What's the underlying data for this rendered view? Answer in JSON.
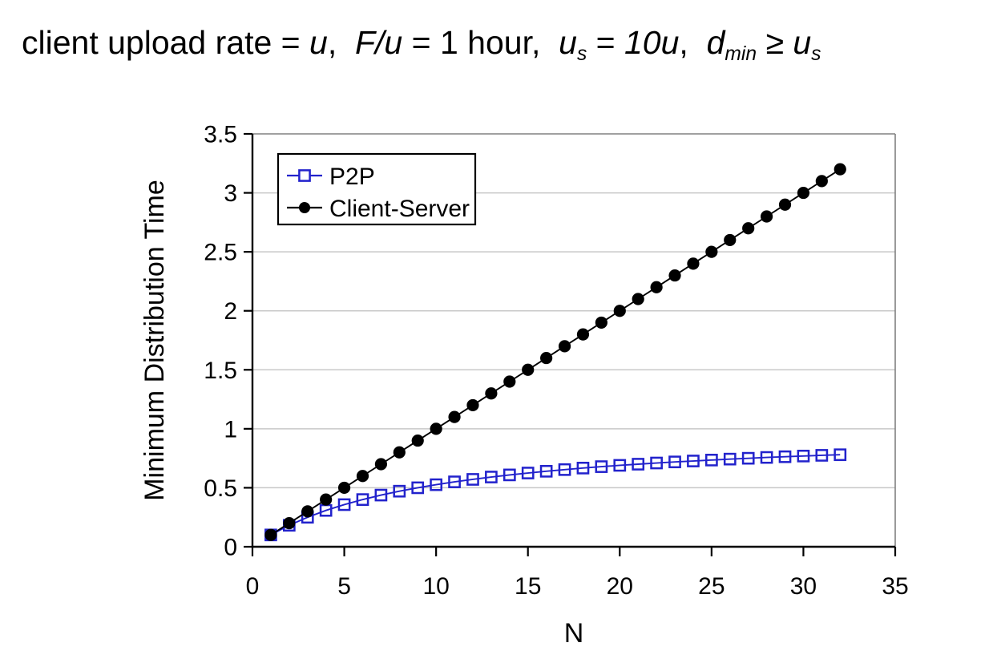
{
  "title": {
    "segments": [
      {
        "text": "client upload rate = "
      },
      {
        "text": "u",
        "italic": true
      },
      {
        "text": ",  "
      },
      {
        "text": "F/u",
        "italic": true
      },
      {
        "text": " = 1 hour,  "
      },
      {
        "text": "u",
        "italic": true
      },
      {
        "text": "s",
        "italic": true,
        "sub": true
      },
      {
        "text": " = "
      },
      {
        "text": "10u",
        "italic": true
      },
      {
        "text": ",  "
      },
      {
        "text": "d",
        "italic": true
      },
      {
        "text": "min",
        "italic": true,
        "sub": true
      },
      {
        "text": " ≥ "
      },
      {
        "text": "u",
        "italic": true
      },
      {
        "text": "s",
        "italic": true,
        "sub": true
      }
    ]
  },
  "chart_data": {
    "type": "line",
    "xlabel": "N",
    "ylabel": "Minimum Distribution Time",
    "xlim": [
      0,
      35
    ],
    "ylim": [
      0,
      3.5
    ],
    "xticks": [
      0,
      5,
      10,
      15,
      20,
      25,
      30,
      35
    ],
    "yticks": [
      0,
      0.5,
      1,
      1.5,
      2,
      2.5,
      3,
      3.5
    ],
    "xtick_labels": [
      "0",
      "5",
      "10",
      "15",
      "20",
      "25",
      "30",
      "35"
    ],
    "ytick_labels": [
      "0",
      "0.5",
      "1",
      "1.5",
      "2",
      "2.5",
      "3",
      "3.5"
    ],
    "grid": "horizontal-only",
    "legend_position": "top-left",
    "x": [
      1,
      2,
      3,
      4,
      5,
      6,
      7,
      8,
      9,
      10,
      11,
      12,
      13,
      14,
      15,
      16,
      17,
      18,
      19,
      20,
      21,
      22,
      23,
      24,
      25,
      26,
      27,
      28,
      29,
      30,
      31,
      32
    ],
    "series": [
      {
        "name": "P2P",
        "color": "#2222cc",
        "marker": "open-square",
        "values": [
          0.1,
          0.182,
          0.25,
          0.308,
          0.357,
          0.4,
          0.438,
          0.471,
          0.5,
          0.526,
          0.55,
          0.571,
          0.591,
          0.609,
          0.625,
          0.64,
          0.654,
          0.667,
          0.679,
          0.69,
          0.7,
          0.71,
          0.719,
          0.727,
          0.735,
          0.743,
          0.75,
          0.757,
          0.763,
          0.769,
          0.775,
          0.78
        ]
      },
      {
        "name": "Client-Server",
        "color": "#000000",
        "marker": "filled-circle",
        "values": [
          0.1,
          0.2,
          0.3,
          0.4,
          0.5,
          0.6,
          0.7,
          0.8,
          0.9,
          1.0,
          1.1,
          1.2,
          1.3,
          1.4,
          1.5,
          1.6,
          1.7,
          1.8,
          1.9,
          2.0,
          2.1,
          2.2,
          2.3,
          2.4,
          2.5,
          2.6,
          2.7,
          2.8,
          2.9,
          3.0,
          3.1,
          3.2
        ]
      }
    ],
    "colors": {
      "grid": "#c8c8c8",
      "frame": "#808080",
      "axis": "#000000",
      "p2p": "#2222cc",
      "client_server": "#000000",
      "legend_background": "#ffffff",
      "legend_border": "#000000"
    }
  }
}
